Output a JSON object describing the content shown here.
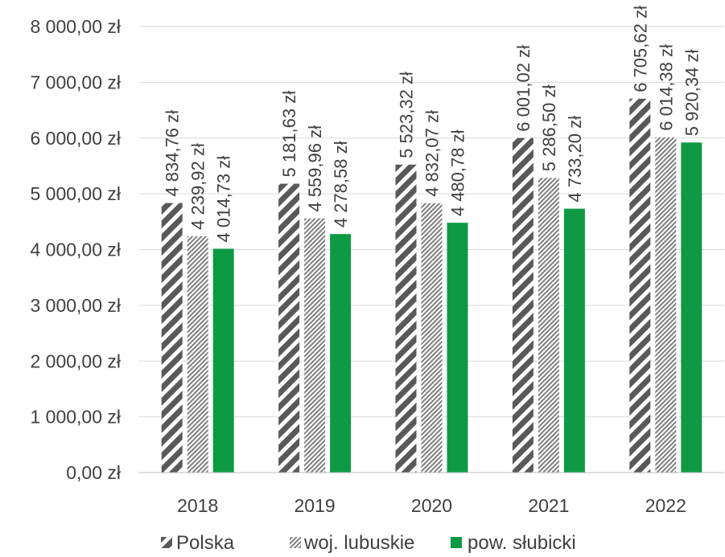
{
  "chart_data": {
    "type": "bar",
    "categories": [
      "2018",
      "2019",
      "2020",
      "2021",
      "2022"
    ],
    "series": [
      {
        "name": "Polska",
        "pattern": "wide-diagonal-stripes",
        "color": "#595959",
        "values": [
          4834.76,
          5181.63,
          5523.32,
          6001.02,
          6705.62
        ],
        "labels": [
          "4 834,76 zł",
          "5 181,63 zł",
          "5 523,32 zł",
          "6 001,02 zł",
          "6 705,62 zł"
        ]
      },
      {
        "name": "woj. lubuskie",
        "pattern": "fine-diagonal-stripes",
        "color": "#7f7f7f",
        "values": [
          4239.92,
          4559.96,
          4832.07,
          5286.5,
          6014.38
        ],
        "labels": [
          "4 239,92 zł",
          "4 559,96 zł",
          "4 832,07 zł",
          "5 286,50 zł",
          "6 014,38 zł"
        ]
      },
      {
        "name": "pow. słubicki",
        "pattern": "solid",
        "color": "#0e9a44",
        "values": [
          4014.73,
          4278.58,
          4480.78,
          4733.2,
          5920.34
        ],
        "labels": [
          "4 014,73 zł",
          "4 278,58 zł",
          "4 480,78 zł",
          "4 733,20 zł",
          "5 920,34 zł"
        ]
      }
    ],
    "y_ticks": [
      0,
      1000,
      2000,
      3000,
      4000,
      5000,
      6000,
      7000,
      8000
    ],
    "y_tick_labels": [
      "0,00 zł",
      "1 000,00 zł",
      "2 000,00 zł",
      "3 000,00 zł",
      "4 000,00 zł",
      "5 000,00 zł",
      "6 000,00 zł",
      "7 000,00 zł",
      "8 000,00 zł"
    ],
    "ylim": [
      0,
      8000
    ],
    "grid": true,
    "legend_position": "bottom",
    "title": "",
    "xlabel": "",
    "ylabel": "",
    "colors": {
      "grid": "#d9d9d9",
      "text": "#404040",
      "axis": "#bfbfbf"
    }
  }
}
